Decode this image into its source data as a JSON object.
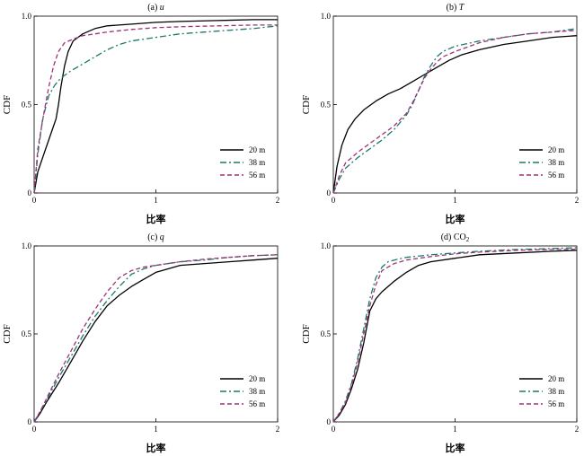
{
  "chart_data": [
    {
      "type": "line",
      "title": "(a) u",
      "title_prefix": "(a) ",
      "title_var": "u",
      "xlabel": "比率",
      "ylabel": "CDF",
      "xlim": [
        0,
        2
      ],
      "ylim": [
        0,
        1
      ],
      "xticks": [
        "0",
        "1",
        "2"
      ],
      "yticks": [
        "0",
        "0.5",
        "1.0"
      ],
      "grid": false,
      "legend_position": "bottom-right",
      "series": [
        {
          "name": "20 m",
          "color": "#000000",
          "dash": "solid",
          "x": [
            0,
            0.03,
            0.08,
            0.13,
            0.18,
            0.2,
            0.22,
            0.25,
            0.28,
            0.32,
            0.4,
            0.5,
            0.6,
            0.8,
            1.0,
            1.2,
            1.5,
            1.8,
            2.0
          ],
          "y": [
            0,
            0.12,
            0.22,
            0.32,
            0.42,
            0.5,
            0.6,
            0.72,
            0.8,
            0.86,
            0.9,
            0.93,
            0.945,
            0.955,
            0.965,
            0.97,
            0.975,
            0.98,
            0.98
          ]
        },
        {
          "name": "38 m",
          "color": "#1a7a6a",
          "dash": "dashdot",
          "x": [
            0,
            0.03,
            0.07,
            0.12,
            0.17,
            0.22,
            0.3,
            0.4,
            0.5,
            0.6,
            0.7,
            0.8,
            0.9,
            1.0,
            1.2,
            1.5,
            1.8,
            2.0
          ],
          "y": [
            0,
            0.22,
            0.42,
            0.55,
            0.61,
            0.65,
            0.69,
            0.73,
            0.77,
            0.81,
            0.84,
            0.86,
            0.87,
            0.88,
            0.9,
            0.915,
            0.93,
            0.945
          ]
        },
        {
          "name": "56 m",
          "color": "#a0307a",
          "dash": "dash",
          "x": [
            0,
            0.03,
            0.08,
            0.12,
            0.16,
            0.2,
            0.25,
            0.32,
            0.4,
            0.5,
            0.6,
            0.8,
            1.0,
            1.2,
            1.5,
            1.8,
            2.0
          ],
          "y": [
            0,
            0.25,
            0.45,
            0.6,
            0.72,
            0.8,
            0.85,
            0.87,
            0.89,
            0.9,
            0.91,
            0.925,
            0.935,
            0.94,
            0.945,
            0.95,
            0.95
          ]
        }
      ]
    },
    {
      "type": "line",
      "title": "(b) T",
      "title_prefix": "(b) ",
      "title_var": "T",
      "xlabel": "比率",
      "ylabel": "CDF",
      "xlim": [
        0,
        2
      ],
      "ylim": [
        0,
        1
      ],
      "xticks": [
        "0",
        "1",
        "2"
      ],
      "yticks": [
        "0",
        "0.5",
        "1.0"
      ],
      "grid": false,
      "legend_position": "bottom-right",
      "series": [
        {
          "name": "20 m",
          "color": "#000000",
          "dash": "solid",
          "x": [
            0,
            0.03,
            0.07,
            0.12,
            0.18,
            0.25,
            0.35,
            0.45,
            0.55,
            0.65,
            0.75,
            0.85,
            0.95,
            1.05,
            1.2,
            1.4,
            1.6,
            1.8,
            2.0
          ],
          "y": [
            0,
            0.15,
            0.27,
            0.36,
            0.42,
            0.47,
            0.52,
            0.56,
            0.59,
            0.63,
            0.67,
            0.71,
            0.75,
            0.78,
            0.81,
            0.84,
            0.86,
            0.88,
            0.89
          ]
        },
        {
          "name": "38 m",
          "color": "#1a7a6a",
          "dash": "dashdot",
          "x": [
            0,
            0.05,
            0.1,
            0.2,
            0.3,
            0.4,
            0.5,
            0.6,
            0.65,
            0.7,
            0.75,
            0.8,
            0.85,
            0.9,
            1.0,
            1.2,
            1.4,
            1.6,
            1.8,
            2.0
          ],
          "y": [
            0,
            0.08,
            0.14,
            0.2,
            0.25,
            0.3,
            0.36,
            0.44,
            0.5,
            0.58,
            0.66,
            0.72,
            0.77,
            0.8,
            0.83,
            0.86,
            0.88,
            0.9,
            0.91,
            0.93
          ]
        },
        {
          "name": "56 m",
          "color": "#a0307a",
          "dash": "dash",
          "x": [
            0,
            0.05,
            0.1,
            0.2,
            0.3,
            0.4,
            0.5,
            0.6,
            0.65,
            0.7,
            0.75,
            0.8,
            0.85,
            0.9,
            1.0,
            1.2,
            1.4,
            1.6,
            1.8,
            2.0
          ],
          "y": [
            0,
            0.1,
            0.17,
            0.23,
            0.28,
            0.33,
            0.38,
            0.45,
            0.51,
            0.58,
            0.65,
            0.7,
            0.74,
            0.77,
            0.8,
            0.85,
            0.88,
            0.9,
            0.91,
            0.92
          ]
        }
      ]
    },
    {
      "type": "line",
      "title": "(c) q",
      "title_prefix": "(c) ",
      "title_var": "q",
      "xlabel": "比率",
      "ylabel": "CDF",
      "xlim": [
        0,
        2
      ],
      "ylim": [
        0,
        1
      ],
      "xticks": [
        "0",
        "1",
        "2"
      ],
      "yticks": [
        "0",
        "0.5",
        "1.0"
      ],
      "grid": false,
      "legend_position": "bottom-right",
      "series": [
        {
          "name": "20 m",
          "color": "#000000",
          "dash": "solid",
          "x": [
            0,
            0.05,
            0.1,
            0.2,
            0.3,
            0.4,
            0.5,
            0.6,
            0.7,
            0.8,
            0.9,
            1.0,
            1.1,
            1.2,
            1.4,
            1.6,
            1.8,
            2.0
          ],
          "y": [
            0,
            0.05,
            0.11,
            0.22,
            0.34,
            0.46,
            0.57,
            0.66,
            0.72,
            0.77,
            0.81,
            0.85,
            0.87,
            0.89,
            0.9,
            0.91,
            0.92,
            0.93
          ]
        },
        {
          "name": "38 m",
          "color": "#1a7a6a",
          "dash": "dashdot",
          "x": [
            0,
            0.05,
            0.1,
            0.2,
            0.3,
            0.4,
            0.5,
            0.6,
            0.7,
            0.8,
            0.9,
            1.0,
            1.2,
            1.4,
            1.6,
            1.8,
            2.0
          ],
          "y": [
            0,
            0.06,
            0.12,
            0.25,
            0.37,
            0.49,
            0.6,
            0.69,
            0.77,
            0.84,
            0.87,
            0.89,
            0.91,
            0.92,
            0.935,
            0.945,
            0.95
          ]
        },
        {
          "name": "56 m",
          "color": "#a0307a",
          "dash": "dash",
          "x": [
            0,
            0.05,
            0.1,
            0.2,
            0.3,
            0.4,
            0.5,
            0.6,
            0.7,
            0.8,
            0.9,
            1.0,
            1.2,
            1.4,
            1.6,
            1.8,
            2.0
          ],
          "y": [
            0,
            0.06,
            0.13,
            0.27,
            0.4,
            0.53,
            0.64,
            0.74,
            0.82,
            0.86,
            0.88,
            0.89,
            0.91,
            0.925,
            0.935,
            0.945,
            0.95
          ]
        }
      ]
    },
    {
      "type": "line",
      "title": "(d) CO2",
      "title_prefix": "(d) CO",
      "title_sub": "2",
      "xlabel": "比率",
      "ylabel": "CDF",
      "xlim": [
        0,
        2
      ],
      "ylim": [
        0,
        1
      ],
      "xticks": [
        "0",
        "1",
        "2"
      ],
      "yticks": [
        "0",
        "0.5",
        "1.0"
      ],
      "grid": false,
      "legend_position": "bottom-right",
      "series": [
        {
          "name": "20 m",
          "color": "#000000",
          "dash": "solid",
          "x": [
            0,
            0.05,
            0.1,
            0.15,
            0.2,
            0.25,
            0.3,
            0.35,
            0.4,
            0.5,
            0.6,
            0.7,
            0.8,
            1.0,
            1.2,
            1.5,
            1.8,
            2.0
          ],
          "y": [
            0,
            0.04,
            0.1,
            0.19,
            0.3,
            0.45,
            0.63,
            0.7,
            0.74,
            0.8,
            0.85,
            0.89,
            0.91,
            0.93,
            0.95,
            0.96,
            0.97,
            0.975
          ]
        },
        {
          "name": "38 m",
          "color": "#1a7a6a",
          "dash": "dashdot",
          "x": [
            0,
            0.05,
            0.1,
            0.15,
            0.2,
            0.25,
            0.3,
            0.35,
            0.4,
            0.45,
            0.5,
            0.6,
            0.8,
            1.0,
            1.2,
            1.5,
            1.8,
            2.0
          ],
          "y": [
            0,
            0.05,
            0.12,
            0.22,
            0.36,
            0.53,
            0.7,
            0.82,
            0.88,
            0.91,
            0.92,
            0.935,
            0.95,
            0.96,
            0.97,
            0.98,
            0.985,
            0.99
          ]
        },
        {
          "name": "56 m",
          "color": "#a0307a",
          "dash": "dash",
          "x": [
            0,
            0.05,
            0.1,
            0.15,
            0.2,
            0.25,
            0.3,
            0.35,
            0.4,
            0.5,
            0.6,
            0.8,
            1.0,
            1.2,
            1.5,
            1.8,
            2.0
          ],
          "y": [
            0,
            0.05,
            0.11,
            0.21,
            0.34,
            0.5,
            0.66,
            0.78,
            0.86,
            0.9,
            0.92,
            0.94,
            0.955,
            0.965,
            0.975,
            0.98,
            0.98
          ]
        }
      ]
    }
  ]
}
